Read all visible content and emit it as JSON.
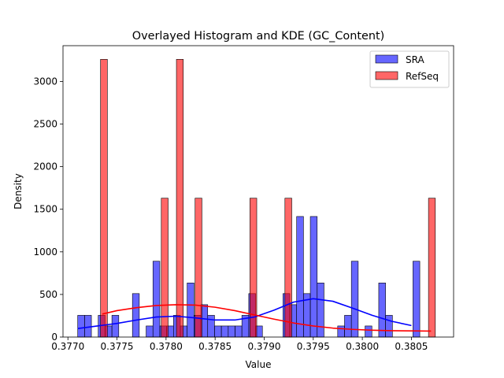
{
  "chart_data": {
    "type": "bar",
    "title": "Overlayed Histogram and KDE (GC_Content)",
    "xlabel": "Value",
    "ylabel": "Density",
    "xlim": [
      0.37695,
      0.38093
    ],
    "ylim": [
      0,
      3420
    ],
    "xticks": [
      0.377,
      0.3775,
      0.378,
      0.3785,
      0.379,
      0.3795,
      0.38,
      0.3805
    ],
    "xtick_labels": [
      "0.3770",
      "0.3775",
      "0.3780",
      "0.3785",
      "0.3790",
      "0.3795",
      "0.3800",
      "0.3805"
    ],
    "yticks": [
      0,
      500,
      1000,
      1500,
      2000,
      2500,
      3000
    ],
    "ytick_labels": [
      "0",
      "500",
      "1000",
      "1500",
      "2000",
      "2500",
      "3000"
    ],
    "grid": false,
    "legend_position": "top-right",
    "series": [
      {
        "name": "SRA",
        "color": "#0000ff",
        "fill_opacity": 0.6,
        "bin_width": 6.97e-05,
        "bins": [
          {
            "x": 0.3771,
            "value": 255
          },
          {
            "x": 0.3771697,
            "value": 255
          },
          {
            "x": 0.3773091,
            "value": 255
          },
          {
            "x": 0.3773788,
            "value": 130
          },
          {
            "x": 0.3774485,
            "value": 255
          },
          {
            "x": 0.3776576,
            "value": 510
          },
          {
            "x": 0.377797,
            "value": 130
          },
          {
            "x": 0.3778667,
            "value": 890
          },
          {
            "x": 0.3779364,
            "value": 130
          },
          {
            "x": 0.3780061,
            "value": 130
          },
          {
            "x": 0.3780758,
            "value": 255
          },
          {
            "x": 0.3781455,
            "value": 130
          },
          {
            "x": 0.3782152,
            "value": 635
          },
          {
            "x": 0.3782849,
            "value": 255
          },
          {
            "x": 0.3783546,
            "value": 380
          },
          {
            "x": 0.3784243,
            "value": 255
          },
          {
            "x": 0.378494,
            "value": 130
          },
          {
            "x": 0.3785637,
            "value": 130
          },
          {
            "x": 0.3786334,
            "value": 130
          },
          {
            "x": 0.3787031,
            "value": 130
          },
          {
            "x": 0.3787728,
            "value": 255
          },
          {
            "x": 0.3788425,
            "value": 510
          },
          {
            "x": 0.3789122,
            "value": 130
          },
          {
            "x": 0.3791913,
            "value": 510
          },
          {
            "x": 0.379261,
            "value": 380
          },
          {
            "x": 0.3793307,
            "value": 1415
          },
          {
            "x": 0.3794004,
            "value": 510
          },
          {
            "x": 0.3794701,
            "value": 1415
          },
          {
            "x": 0.3795398,
            "value": 635
          },
          {
            "x": 0.3797489,
            "value": 130
          },
          {
            "x": 0.3798186,
            "value": 255
          },
          {
            "x": 0.3798883,
            "value": 890
          },
          {
            "x": 0.3800277,
            "value": 130
          },
          {
            "x": 0.3801671,
            "value": 635
          },
          {
            "x": 0.3802368,
            "value": 255
          },
          {
            "x": 0.3805158,
            "value": 890
          }
        ],
        "kde": {
          "x": [
            0.3771,
            0.3773,
            0.3775,
            0.3777,
            0.3779,
            0.3781,
            0.3783,
            0.3785,
            0.3787,
            0.3789,
            0.3791,
            0.3793,
            0.3795,
            0.3797,
            0.3799,
            0.3801,
            0.3803,
            0.3805
          ],
          "y": [
            100,
            130,
            160,
            200,
            235,
            245,
            225,
            200,
            200,
            235,
            315,
            410,
            450,
            420,
            340,
            255,
            185,
            135
          ]
        }
      },
      {
        "name": "RefSeq",
        "color": "#ff0000",
        "fill_opacity": 0.6,
        "bin_width": 6.97e-05,
        "bins": [
          {
            "x": 0.3773323,
            "value": 3260
          },
          {
            "x": 0.3779515,
            "value": 1630
          },
          {
            "x": 0.3781058,
            "value": 3260
          },
          {
            "x": 0.3782958,
            "value": 1630
          },
          {
            "x": 0.3788545,
            "value": 1630
          },
          {
            "x": 0.3792112,
            "value": 1630
          },
          {
            "x": 0.3806742,
            "value": 1630
          }
        ],
        "kde": {
          "x": [
            0.37735,
            0.3775,
            0.3777,
            0.3779,
            0.3781,
            0.3783,
            0.3785,
            0.3787,
            0.3789,
            0.3791,
            0.3793,
            0.3795,
            0.3797,
            0.3799,
            0.3801,
            0.3803,
            0.3805,
            0.3807
          ],
          "y": [
            270,
            310,
            345,
            370,
            380,
            375,
            350,
            310,
            260,
            210,
            165,
            130,
            105,
            90,
            80,
            75,
            72,
            70
          ]
        }
      }
    ]
  }
}
